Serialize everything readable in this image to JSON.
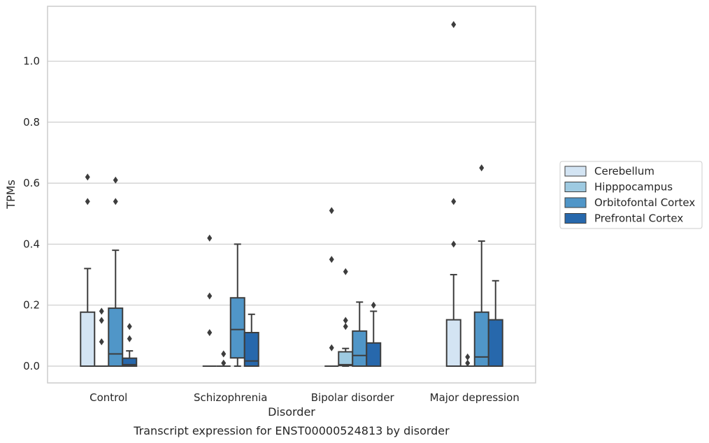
{
  "caption": "Transcript expression for ENST00000524813 by disorder",
  "chart_data": {
    "type": "box",
    "title": "",
    "xlabel": "Disorder",
    "ylabel": "TPMs",
    "categories": [
      "Control",
      "Schizophrenia",
      "Bipolar disorder",
      "Major depression"
    ],
    "ylim": [
      -0.055,
      1.18
    ],
    "yticks": [
      0.0,
      0.2,
      0.4,
      0.6,
      0.8,
      1.0
    ],
    "ytick_labels": [
      "0.0",
      "0.2",
      "0.4",
      "0.6",
      "0.8",
      "1.0"
    ],
    "grid": "horizontal",
    "legend_position": "right",
    "series": [
      {
        "name": "Cerebellum",
        "color": "#d3e4f3",
        "boxes": [
          {
            "q1": 0.0,
            "median": 0.0,
            "q3": 0.177,
            "whislo": 0.0,
            "whishi": 0.32,
            "fliers": [
              0.54,
              0.62
            ]
          },
          {
            "q1": 0.0,
            "median": 0.0,
            "q3": 0.0,
            "whislo": 0.0,
            "whishi": 0.0,
            "fliers": [
              0.11,
              0.23,
              0.42
            ]
          },
          {
            "q1": 0.0,
            "median": 0.0,
            "q3": 0.0,
            "whislo": 0.0,
            "whishi": 0.0,
            "fliers": [
              0.06,
              0.35,
              0.51
            ]
          },
          {
            "q1": 0.0,
            "median": 0.0,
            "q3": 0.152,
            "whislo": 0.0,
            "whishi": 0.3,
            "fliers": [
              0.4,
              0.54,
              1.12
            ]
          }
        ]
      },
      {
        "name": "Hipppocampus",
        "color": "#9ecae1",
        "boxes": [
          {
            "q1": 0.0,
            "median": 0.0,
            "q3": 0.0,
            "whislo": 0.0,
            "whishi": 0.0,
            "fliers": [
              0.08,
              0.15,
              0.18
            ]
          },
          {
            "q1": 0.0,
            "median": 0.0,
            "q3": 0.0,
            "whislo": 0.0,
            "whishi": 0.0,
            "fliers": [
              0.01,
              0.04
            ]
          },
          {
            "q1": 0.002,
            "median": 0.005,
            "q3": 0.047,
            "whislo": 0.0,
            "whishi": 0.058,
            "fliers": [
              0.13,
              0.15,
              0.31
            ]
          },
          {
            "q1": 0.0,
            "median": 0.0,
            "q3": 0.0,
            "whislo": 0.0,
            "whishi": 0.0,
            "fliers": [
              0.01,
              0.03
            ]
          }
        ]
      },
      {
        "name": "Orbitofontal Cortex",
        "color": "#5096c8",
        "boxes": [
          {
            "q1": 0.0,
            "median": 0.04,
            "q3": 0.19,
            "whislo": 0.0,
            "whishi": 0.38,
            "fliers": [
              0.54,
              0.61
            ]
          },
          {
            "q1": 0.027,
            "median": 0.12,
            "q3": 0.224,
            "whislo": 0.0,
            "whishi": 0.4,
            "fliers": []
          },
          {
            "q1": 0.0,
            "median": 0.035,
            "q3": 0.115,
            "whislo": 0.0,
            "whishi": 0.21,
            "fliers": []
          },
          {
            "q1": 0.0,
            "median": 0.03,
            "q3": 0.177,
            "whislo": 0.0,
            "whishi": 0.41,
            "fliers": [
              0.65
            ]
          }
        ]
      },
      {
        "name": "Prefrontal Cortex",
        "color": "#2768ac",
        "boxes": [
          {
            "q1": 0.0,
            "median": 0.005,
            "q3": 0.026,
            "whislo": 0.0,
            "whishi": 0.05,
            "fliers": [
              0.09,
              0.13
            ]
          },
          {
            "q1": 0.0,
            "median": 0.017,
            "q3": 0.11,
            "whislo": 0.0,
            "whishi": 0.17,
            "fliers": []
          },
          {
            "q1": 0.0,
            "median": 0.0,
            "q3": 0.076,
            "whislo": 0.0,
            "whishi": 0.18,
            "fliers": [
              0.2
            ]
          },
          {
            "q1": 0.0,
            "median": 0.0,
            "q3": 0.152,
            "whislo": 0.0,
            "whishi": 0.28,
            "fliers": []
          }
        ]
      }
    ]
  }
}
